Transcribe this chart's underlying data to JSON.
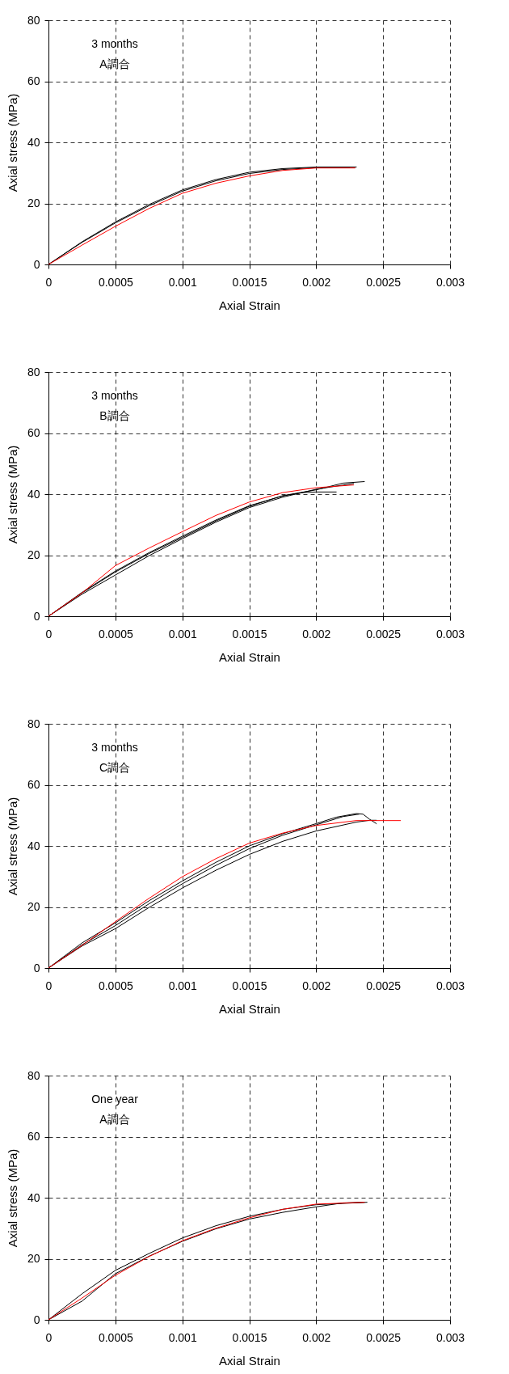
{
  "chart_data": [
    {
      "type": "line",
      "annotations": [
        "3 months",
        "A調合"
      ],
      "xlabel": "Axial Strain",
      "ylabel": "Axial stress (MPa)",
      "xlim": [
        0,
        0.003
      ],
      "xticks": [
        0,
        0.0005,
        0.001,
        0.0015,
        0.002,
        0.0025,
        0.003
      ],
      "ylim": [
        0,
        80
      ],
      "yticks": [
        0,
        20,
        40,
        60,
        80
      ],
      "grid": true,
      "line_style": "solid",
      "series": [
        {
          "color": "#000000",
          "x": [
            0,
            0.00025,
            0.0005,
            0.00075,
            0.001,
            0.00125,
            0.0015,
            0.00175,
            0.002,
            0.0023
          ],
          "values": [
            0,
            7.4,
            13.9,
            19.6,
            24.4,
            27.8,
            30.2,
            31.4,
            31.9,
            31.9
          ]
        },
        {
          "color": "#000000",
          "x": [
            0,
            0.00025,
            0.0005,
            0.00075,
            0.001,
            0.00125,
            0.0015,
            0.00175,
            0.002,
            0.00225
          ],
          "values": [
            0,
            7.2,
            13.6,
            19.2,
            24.0,
            27.4,
            29.8,
            31.1,
            31.7,
            31.8
          ]
        },
        {
          "color": "#ff0000",
          "x": [
            0,
            0.00025,
            0.0005,
            0.00075,
            0.001,
            0.00125,
            0.0015,
            0.00175,
            0.002,
            0.00229
          ],
          "values": [
            0,
            6.3,
            12.5,
            18.3,
            23.3,
            26.6,
            29.0,
            30.8,
            31.6,
            31.6
          ]
        }
      ]
    },
    {
      "type": "line",
      "annotations": [
        "3 months",
        "B調合"
      ],
      "xlabel": "Axial Strain",
      "ylabel": "Axial stress (MPa)",
      "xlim": [
        0,
        0.003
      ],
      "xticks": [
        0,
        0.0005,
        0.001,
        0.0015,
        0.002,
        0.0025,
        0.003
      ],
      "ylim": [
        0,
        80
      ],
      "yticks": [
        0,
        20,
        40,
        60,
        80
      ],
      "grid": true,
      "line_style": "solid",
      "series": [
        {
          "color": "#000000",
          "x": [
            0,
            0.00025,
            0.0005,
            0.00075,
            0.001,
            0.00125,
            0.0015,
            0.00175,
            0.002,
            0.0022,
            0.00236
          ],
          "values": [
            0,
            7.6,
            14.5,
            20.5,
            25.8,
            31.2,
            36.0,
            39.5,
            41.4,
            43.6,
            44.1
          ]
        },
        {
          "color": "#000000",
          "x": [
            0,
            0.00025,
            0.0005,
            0.00075,
            0.001,
            0.00125,
            0.0015,
            0.00175,
            0.0019,
            0.002,
            0.00215
          ],
          "values": [
            0,
            7.8,
            14.8,
            20.8,
            26.2,
            31.5,
            36.2,
            39.4,
            40.5,
            40.7,
            40.7
          ]
        },
        {
          "color": "#000000",
          "x": [
            0,
            0.00025,
            0.0005,
            0.00075,
            0.001,
            0.00125,
            0.0015,
            0.00175,
            0.002,
            0.00228
          ],
          "values": [
            0,
            7.2,
            13.5,
            19.8,
            25.4,
            30.8,
            35.6,
            39.0,
            41.6,
            43.5
          ]
        },
        {
          "color": "#ff0000",
          "x": [
            0,
            0.00025,
            0.0005,
            0.00075,
            0.001,
            0.00125,
            0.0015,
            0.00175,
            0.002,
            0.00228
          ],
          "values": [
            0,
            7.6,
            16.6,
            22.3,
            27.7,
            33.0,
            37.4,
            40.5,
            42.1,
            43.0
          ]
        }
      ]
    },
    {
      "type": "line",
      "annotations": [
        "3 months",
        "C調合"
      ],
      "xlabel": "Axial Strain",
      "ylabel": "Axial stress (MPa)",
      "xlim": [
        0,
        0.003
      ],
      "xticks": [
        0,
        0.0005,
        0.001,
        0.0015,
        0.002,
        0.0025,
        0.003
      ],
      "ylim": [
        0,
        80
      ],
      "yticks": [
        0,
        20,
        40,
        60,
        80
      ],
      "grid": true,
      "line_style": "solid",
      "series": [
        {
          "color": "#000000",
          "x": [
            0,
            0.00025,
            0.0005,
            0.00075,
            0.001,
            0.00125,
            0.0015,
            0.00175,
            0.002,
            0.00215,
            0.0023,
            0.00235,
            0.0024,
            0.00245
          ],
          "values": [
            0,
            8.2,
            14.8,
            22.0,
            28.5,
            34.6,
            40.0,
            44.0,
            47.3,
            49.4,
            50.6,
            50.4,
            48.7,
            47.3
          ]
        },
        {
          "color": "#000000",
          "x": [
            0,
            0.00025,
            0.0005,
            0.00075,
            0.001,
            0.00125,
            0.0015,
            0.00175,
            0.002,
            0.0022,
            0.00232
          ],
          "values": [
            0,
            7.6,
            13.9,
            21.0,
            27.6,
            33.6,
            39.1,
            43.5,
            46.9,
            49.6,
            50.4
          ]
        },
        {
          "color": "#000000",
          "x": [
            0,
            0.00025,
            0.0005,
            0.00075,
            0.001,
            0.00125,
            0.0015,
            0.00175,
            0.002,
            0.0023,
            0.0024,
            0.00245
          ],
          "values": [
            0,
            7.2,
            12.9,
            19.8,
            26.2,
            32.0,
            37.2,
            41.5,
            44.9,
            47.8,
            48.4,
            48.4
          ]
        },
        {
          "color": "#ff0000",
          "x": [
            0,
            0.00025,
            0.0005,
            0.00075,
            0.001,
            0.00125,
            0.0015,
            0.00175,
            0.002,
            0.0023,
            0.00263
          ],
          "values": [
            0,
            7.4,
            15.2,
            22.8,
            29.9,
            35.8,
            40.9,
            44.2,
            46.7,
            48.3,
            48.3
          ]
        }
      ]
    },
    {
      "type": "line",
      "annotations": [
        "One year",
        "A調合"
      ],
      "xlabel": "Axial Strain",
      "ylabel": "Axial stress (MPa)",
      "xlim": [
        0,
        0.003
      ],
      "xticks": [
        0,
        0.0005,
        0.001,
        0.0015,
        0.002,
        0.0025,
        0.003
      ],
      "ylim": [
        0,
        80
      ],
      "yticks": [
        0,
        20,
        40,
        60,
        80
      ],
      "grid": true,
      "line_style": "solid",
      "series": [
        {
          "color": "#000000",
          "x": [
            0,
            0.00025,
            0.0005,
            0.00075,
            0.001,
            0.00125,
            0.0015,
            0.00175,
            0.002,
            0.00238
          ],
          "values": [
            0,
            8.5,
            16.2,
            21.7,
            26.8,
            30.8,
            33.9,
            36.2,
            37.7,
            38.5
          ]
        },
        {
          "color": "#000000",
          "x": [
            0,
            0.00025,
            0.0005,
            0.00075,
            0.001,
            0.00125,
            0.0015,
            0.00175,
            0.002,
            0.0022,
            0.00236
          ],
          "values": [
            0,
            6.1,
            15.1,
            20.8,
            25.7,
            29.8,
            33.0,
            35.2,
            37.0,
            38.3,
            38.5
          ]
        },
        {
          "color": "#ff0000",
          "x": [
            0,
            0.00025,
            0.0005,
            0.00075,
            0.001,
            0.00125,
            0.0015,
            0.00175,
            0.002,
            0.00236
          ],
          "values": [
            0,
            7.1,
            14.6,
            20.7,
            25.9,
            30.0,
            33.4,
            36.2,
            37.9,
            38.5
          ]
        }
      ]
    }
  ]
}
